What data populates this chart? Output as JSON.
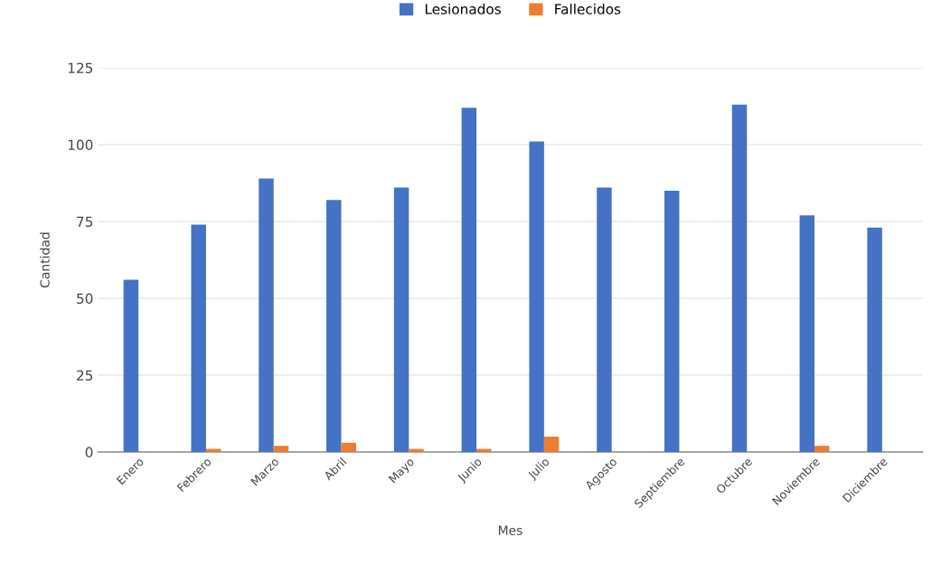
{
  "chart_data": {
    "type": "bar",
    "xlabel": "Mes",
    "ylabel": "Cantidad",
    "categories": [
      "Enero",
      "Febrero",
      "Marzo",
      "Abril",
      "Mayo",
      "Junio",
      "Julio",
      "Agosto",
      "Septiembre",
      "Octubre",
      "Noviembre",
      "Diciembre"
    ],
    "series": [
      {
        "name": "Lesionados",
        "color": "#4472c4",
        "values": [
          56,
          74,
          89,
          82,
          86,
          112,
          101,
          86,
          85,
          113,
          77,
          73
        ]
      },
      {
        "name": "Fallecidos",
        "color": "#ed7d31",
        "values": [
          0,
          1,
          2,
          3,
          1,
          1,
          5,
          0,
          0,
          0,
          2,
          0
        ]
      }
    ],
    "ylim": [
      0,
      125
    ],
    "yticks": [
      0,
      25,
      50,
      75,
      100,
      125
    ],
    "grid": "y",
    "legend": "top"
  }
}
